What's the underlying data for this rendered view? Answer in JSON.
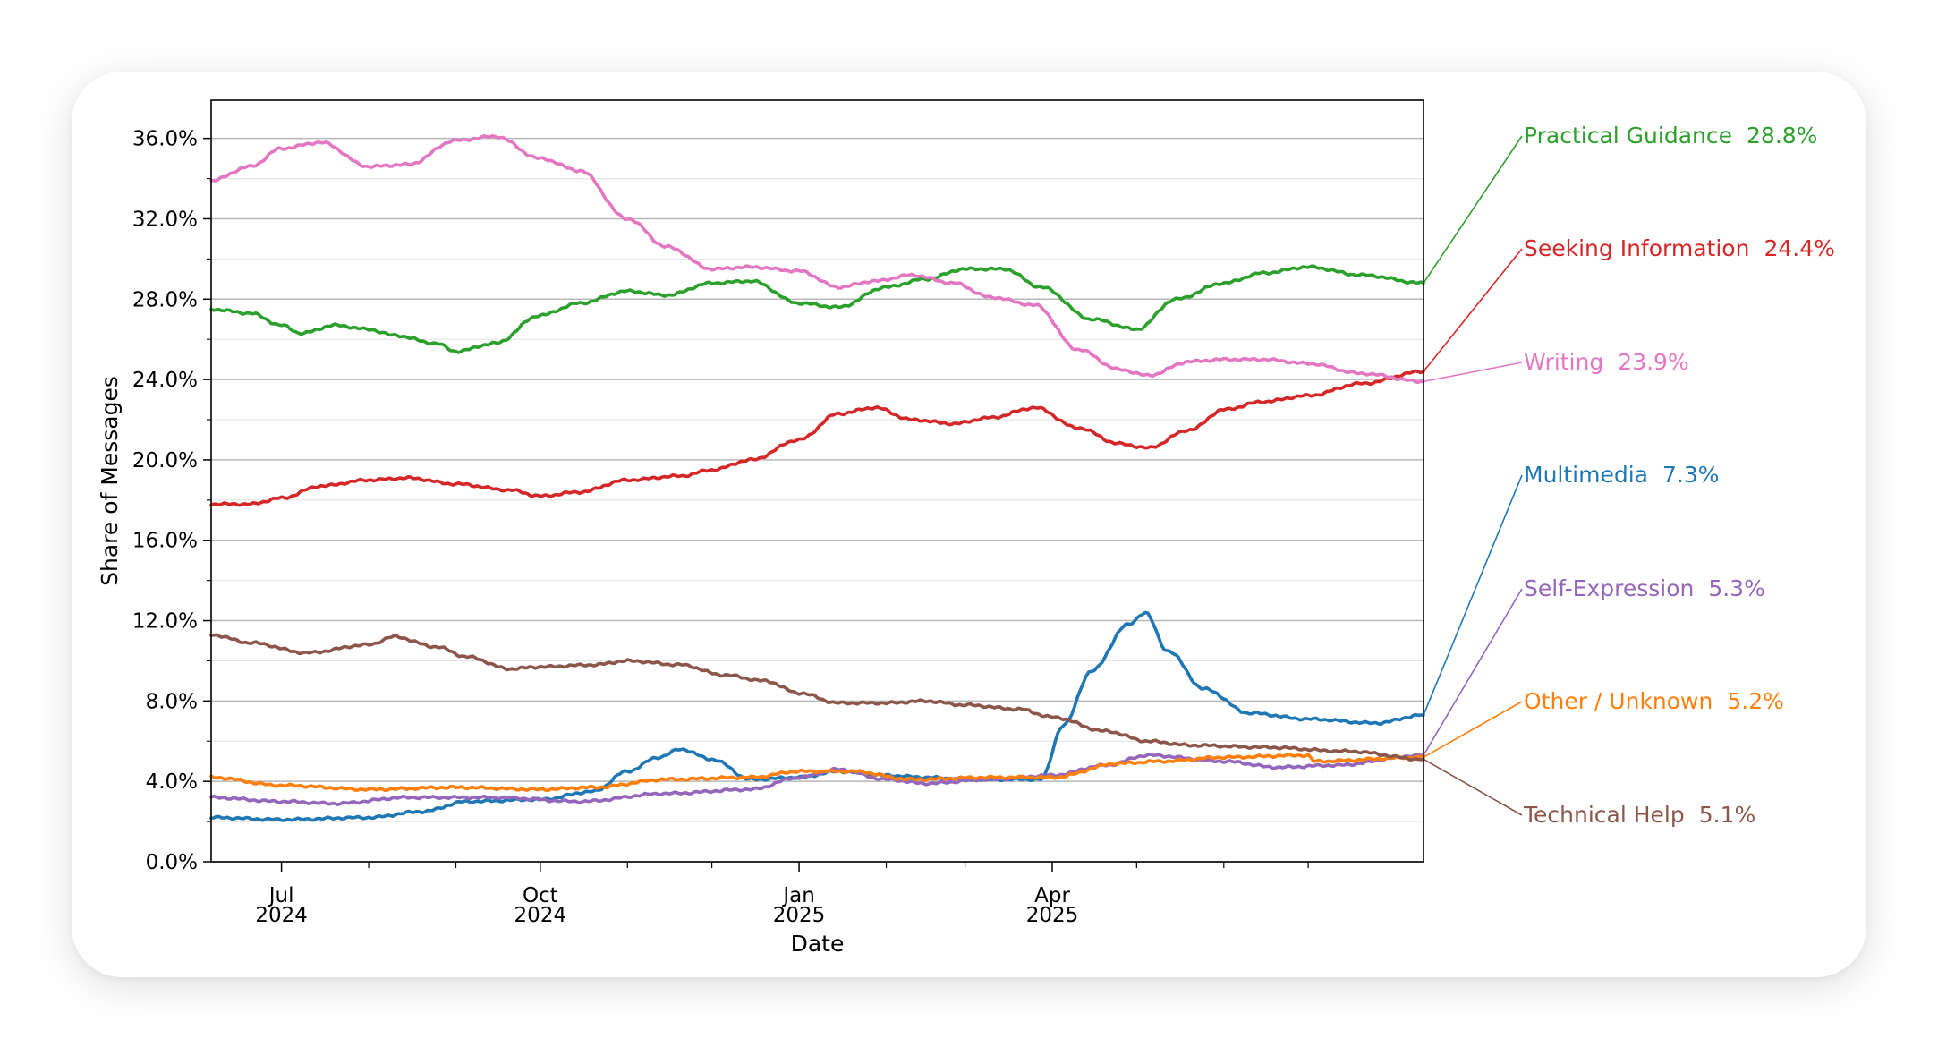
{
  "chart_data": {
    "type": "line",
    "xlabel": "Date",
    "ylabel": "Share of Messages",
    "x_range": [
      "2024-06-06",
      "2025-08-11"
    ],
    "ylim": [
      0,
      37.9
    ],
    "y_ticks": [
      0,
      4,
      8,
      12,
      16,
      20,
      24,
      28,
      32,
      36
    ],
    "y_tick_labels": [
      "0.0%",
      "4.0%",
      "8.0%",
      "12.0%",
      "16.0%",
      "20.0%",
      "24.0%",
      "28.0%",
      "32.0%",
      "36.0%"
    ],
    "x_major_ticks": [
      {
        "date": "2024-07-01",
        "month": "Jul",
        "year": "2024"
      },
      {
        "date": "2024-10-01",
        "month": "Oct",
        "year": "2024"
      },
      {
        "date": "2025-01-01",
        "month": "Jan",
        "year": "2025"
      },
      {
        "date": "2025-04-01",
        "month": "Apr",
        "year": "2025"
      }
    ],
    "x_minor_ticks": [
      "2024-08-01",
      "2024-09-01",
      "2024-11-01",
      "2024-12-01",
      "2025-02-01",
      "2025-03-01",
      "2025-05-01",
      "2025-06-01",
      "2025-07-01"
    ],
    "grid": "horizontal",
    "legend_placement": "right, labels with end values",
    "series": [
      {
        "name": "Practical Guidance",
        "label_value": "28.8%",
        "color": "#2ca02c",
        "points": [
          [
            "2024-06-06",
            27.5
          ],
          [
            "2024-06-20",
            27.3
          ],
          [
            "2024-07-01",
            26.7
          ],
          [
            "2024-07-08",
            26.3
          ],
          [
            "2024-07-20",
            26.7
          ],
          [
            "2024-08-01",
            26.5
          ],
          [
            "2024-08-10",
            26.2
          ],
          [
            "2024-08-25",
            25.8
          ],
          [
            "2024-09-01",
            25.4
          ],
          [
            "2024-09-15",
            25.8
          ],
          [
            "2024-10-01",
            27.2
          ],
          [
            "2024-10-15",
            27.8
          ],
          [
            "2024-11-01",
            28.4
          ],
          [
            "2024-11-15",
            28.2
          ],
          [
            "2024-12-01",
            28.8
          ],
          [
            "2024-12-15",
            28.9
          ],
          [
            "2025-01-01",
            27.8
          ],
          [
            "2025-01-15",
            27.6
          ],
          [
            "2025-02-01",
            28.6
          ],
          [
            "2025-02-15",
            29.0
          ],
          [
            "2025-03-01",
            29.5
          ],
          [
            "2025-03-15",
            29.5
          ],
          [
            "2025-03-28",
            28.6
          ],
          [
            "2025-04-15",
            27.0
          ],
          [
            "2025-05-01",
            26.5
          ],
          [
            "2025-05-15",
            28.0
          ],
          [
            "2025-06-01",
            28.8
          ],
          [
            "2025-06-15",
            29.3
          ],
          [
            "2025-07-01",
            29.6
          ],
          [
            "2025-07-20",
            29.2
          ],
          [
            "2025-08-11",
            28.8
          ]
        ]
      },
      {
        "name": "Seeking Information",
        "label_value": "24.4%",
        "color": "#d62728",
        "points": [
          [
            "2024-06-06",
            17.8
          ],
          [
            "2024-06-20",
            17.8
          ],
          [
            "2024-07-01",
            18.1
          ],
          [
            "2024-07-15",
            18.7
          ],
          [
            "2024-08-01",
            19.0
          ],
          [
            "2024-08-15",
            19.1
          ],
          [
            "2024-09-01",
            18.8
          ],
          [
            "2024-09-20",
            18.5
          ],
          [
            "2024-10-01",
            18.2
          ],
          [
            "2024-10-15",
            18.4
          ],
          [
            "2024-11-01",
            19.0
          ],
          [
            "2024-11-20",
            19.2
          ],
          [
            "2024-12-01",
            19.5
          ],
          [
            "2024-12-15",
            20.0
          ],
          [
            "2025-01-01",
            21.0
          ],
          [
            "2025-01-15",
            22.3
          ],
          [
            "2025-01-28",
            22.6
          ],
          [
            "2025-02-10",
            22.0
          ],
          [
            "2025-02-25",
            21.8
          ],
          [
            "2025-03-10",
            22.1
          ],
          [
            "2025-03-26",
            22.6
          ],
          [
            "2025-04-10",
            21.6
          ],
          [
            "2025-04-25",
            20.8
          ],
          [
            "2025-05-05",
            20.6
          ],
          [
            "2025-05-20",
            21.5
          ],
          [
            "2025-06-01",
            22.5
          ],
          [
            "2025-06-15",
            22.9
          ],
          [
            "2025-07-01",
            23.2
          ],
          [
            "2025-07-20",
            23.8
          ],
          [
            "2025-08-11",
            24.4
          ]
        ]
      },
      {
        "name": "Writing",
        "label_value": "23.9%",
        "color": "#e377c2",
        "points": [
          [
            "2024-06-06",
            33.9
          ],
          [
            "2024-06-20",
            34.6
          ],
          [
            "2024-07-01",
            35.5
          ],
          [
            "2024-07-15",
            35.8
          ],
          [
            "2024-08-01",
            34.6
          ],
          [
            "2024-08-15",
            34.7
          ],
          [
            "2024-09-01",
            35.9
          ],
          [
            "2024-09-15",
            36.1
          ],
          [
            "2024-10-01",
            35.0
          ],
          [
            "2024-10-15",
            34.4
          ],
          [
            "2024-11-01",
            32.0
          ],
          [
            "2024-11-15",
            30.6
          ],
          [
            "2024-12-01",
            29.5
          ],
          [
            "2024-12-15",
            29.6
          ],
          [
            "2025-01-01",
            29.4
          ],
          [
            "2025-01-15",
            28.6
          ],
          [
            "2025-01-28",
            28.9
          ],
          [
            "2025-02-10",
            29.2
          ],
          [
            "2025-02-25",
            28.8
          ],
          [
            "2025-03-10",
            28.1
          ],
          [
            "2025-03-26",
            27.7
          ],
          [
            "2025-04-10",
            25.5
          ],
          [
            "2025-04-25",
            24.5
          ],
          [
            "2025-05-05",
            24.2
          ],
          [
            "2025-05-20",
            24.9
          ],
          [
            "2025-06-01",
            25.0
          ],
          [
            "2025-06-15",
            25.0
          ],
          [
            "2025-07-01",
            24.8
          ],
          [
            "2025-07-20",
            24.3
          ],
          [
            "2025-08-11",
            23.9
          ]
        ]
      },
      {
        "name": "Multimedia",
        "label_value": "7.3%",
        "color": "#1f77b4",
        "points": [
          [
            "2024-06-06",
            2.2
          ],
          [
            "2024-07-01",
            2.1
          ],
          [
            "2024-08-01",
            2.2
          ],
          [
            "2024-08-20",
            2.5
          ],
          [
            "2024-09-05",
            3.0
          ],
          [
            "2024-10-01",
            3.1
          ],
          [
            "2024-10-20",
            3.5
          ],
          [
            "2024-11-01",
            4.5
          ],
          [
            "2024-11-12",
            5.2
          ],
          [
            "2024-11-20",
            5.6
          ],
          [
            "2024-12-01",
            5.1
          ],
          [
            "2024-12-15",
            4.1
          ],
          [
            "2025-01-01",
            4.2
          ],
          [
            "2025-01-15",
            4.5
          ],
          [
            "2025-02-01",
            4.3
          ],
          [
            "2025-02-15",
            4.2
          ],
          [
            "2025-03-01",
            4.1
          ],
          [
            "2025-03-28",
            4.1
          ],
          [
            "2025-04-05",
            6.8
          ],
          [
            "2025-04-15",
            9.5
          ],
          [
            "2025-04-28",
            11.8
          ],
          [
            "2025-05-04",
            12.4
          ],
          [
            "2025-05-12",
            10.5
          ],
          [
            "2025-05-25",
            8.6
          ],
          [
            "2025-06-10",
            7.4
          ],
          [
            "2025-07-01",
            7.1
          ],
          [
            "2025-07-25",
            6.9
          ],
          [
            "2025-08-11",
            7.3
          ]
        ]
      },
      {
        "name": "Self-Expression",
        "label_value": "5.3%",
        "color": "#9467bd",
        "points": [
          [
            "2024-06-06",
            3.2
          ],
          [
            "2024-07-01",
            3.0
          ],
          [
            "2024-07-20",
            2.9
          ],
          [
            "2024-08-15",
            3.2
          ],
          [
            "2024-09-15",
            3.2
          ],
          [
            "2024-10-15",
            3.0
          ],
          [
            "2024-11-15",
            3.4
          ],
          [
            "2024-12-15",
            3.6
          ],
          [
            "2025-01-01",
            4.2
          ],
          [
            "2025-01-15",
            4.6
          ],
          [
            "2025-02-01",
            4.1
          ],
          [
            "2025-02-15",
            3.9
          ],
          [
            "2025-03-10",
            4.1
          ],
          [
            "2025-04-01",
            4.3
          ],
          [
            "2025-04-20",
            4.8
          ],
          [
            "2025-05-05",
            5.3
          ],
          [
            "2025-06-01",
            5.0
          ],
          [
            "2025-06-20",
            4.7
          ],
          [
            "2025-07-10",
            4.8
          ],
          [
            "2025-08-11",
            5.3
          ]
        ]
      },
      {
        "name": "Other / Unknown",
        "label_value": "5.2%",
        "color": "#ff7f0e",
        "points": [
          [
            "2024-06-06",
            4.2
          ],
          [
            "2024-07-01",
            3.8
          ],
          [
            "2024-08-01",
            3.6
          ],
          [
            "2024-09-01",
            3.7
          ],
          [
            "2024-10-01",
            3.6
          ],
          [
            "2024-10-20",
            3.7
          ],
          [
            "2024-11-15",
            4.1
          ],
          [
            "2024-12-15",
            4.2
          ],
          [
            "2025-01-01",
            4.5
          ],
          [
            "2025-01-20",
            4.5
          ],
          [
            "2025-02-10",
            4.1
          ],
          [
            "2025-03-10",
            4.2
          ],
          [
            "2025-04-01",
            4.2
          ],
          [
            "2025-04-25",
            4.9
          ],
          [
            "2025-05-10",
            5.0
          ],
          [
            "2025-06-01",
            5.2
          ],
          [
            "2025-07-01",
            5.3
          ],
          [
            "2025-07-03",
            5.0
          ],
          [
            "2025-08-11",
            5.2
          ]
        ]
      },
      {
        "name": "Technical Help",
        "label_value": "5.1%",
        "color": "#8c564b",
        "points": [
          [
            "2024-06-06",
            11.3
          ],
          [
            "2024-06-20",
            10.9
          ],
          [
            "2024-07-10",
            10.4
          ],
          [
            "2024-08-01",
            10.8
          ],
          [
            "2024-08-10",
            11.2
          ],
          [
            "2024-08-25",
            10.7
          ],
          [
            "2024-09-05",
            10.2
          ],
          [
            "2024-09-20",
            9.6
          ],
          [
            "2024-10-01",
            9.7
          ],
          [
            "2024-10-20",
            9.8
          ],
          [
            "2024-11-01",
            10.0
          ],
          [
            "2024-11-20",
            9.8
          ],
          [
            "2024-12-05",
            9.3
          ],
          [
            "2024-12-20",
            9.0
          ],
          [
            "2025-01-01",
            8.4
          ],
          [
            "2025-01-15",
            7.9
          ],
          [
            "2025-02-01",
            7.9
          ],
          [
            "2025-02-15",
            8.0
          ],
          [
            "2025-03-01",
            7.8
          ],
          [
            "2025-03-20",
            7.6
          ],
          [
            "2025-04-01",
            7.2
          ],
          [
            "2025-04-20",
            6.5
          ],
          [
            "2025-05-05",
            6.0
          ],
          [
            "2025-05-20",
            5.8
          ],
          [
            "2025-06-15",
            5.7
          ],
          [
            "2025-07-15",
            5.5
          ],
          [
            "2025-08-11",
            5.1
          ]
        ]
      }
    ]
  }
}
